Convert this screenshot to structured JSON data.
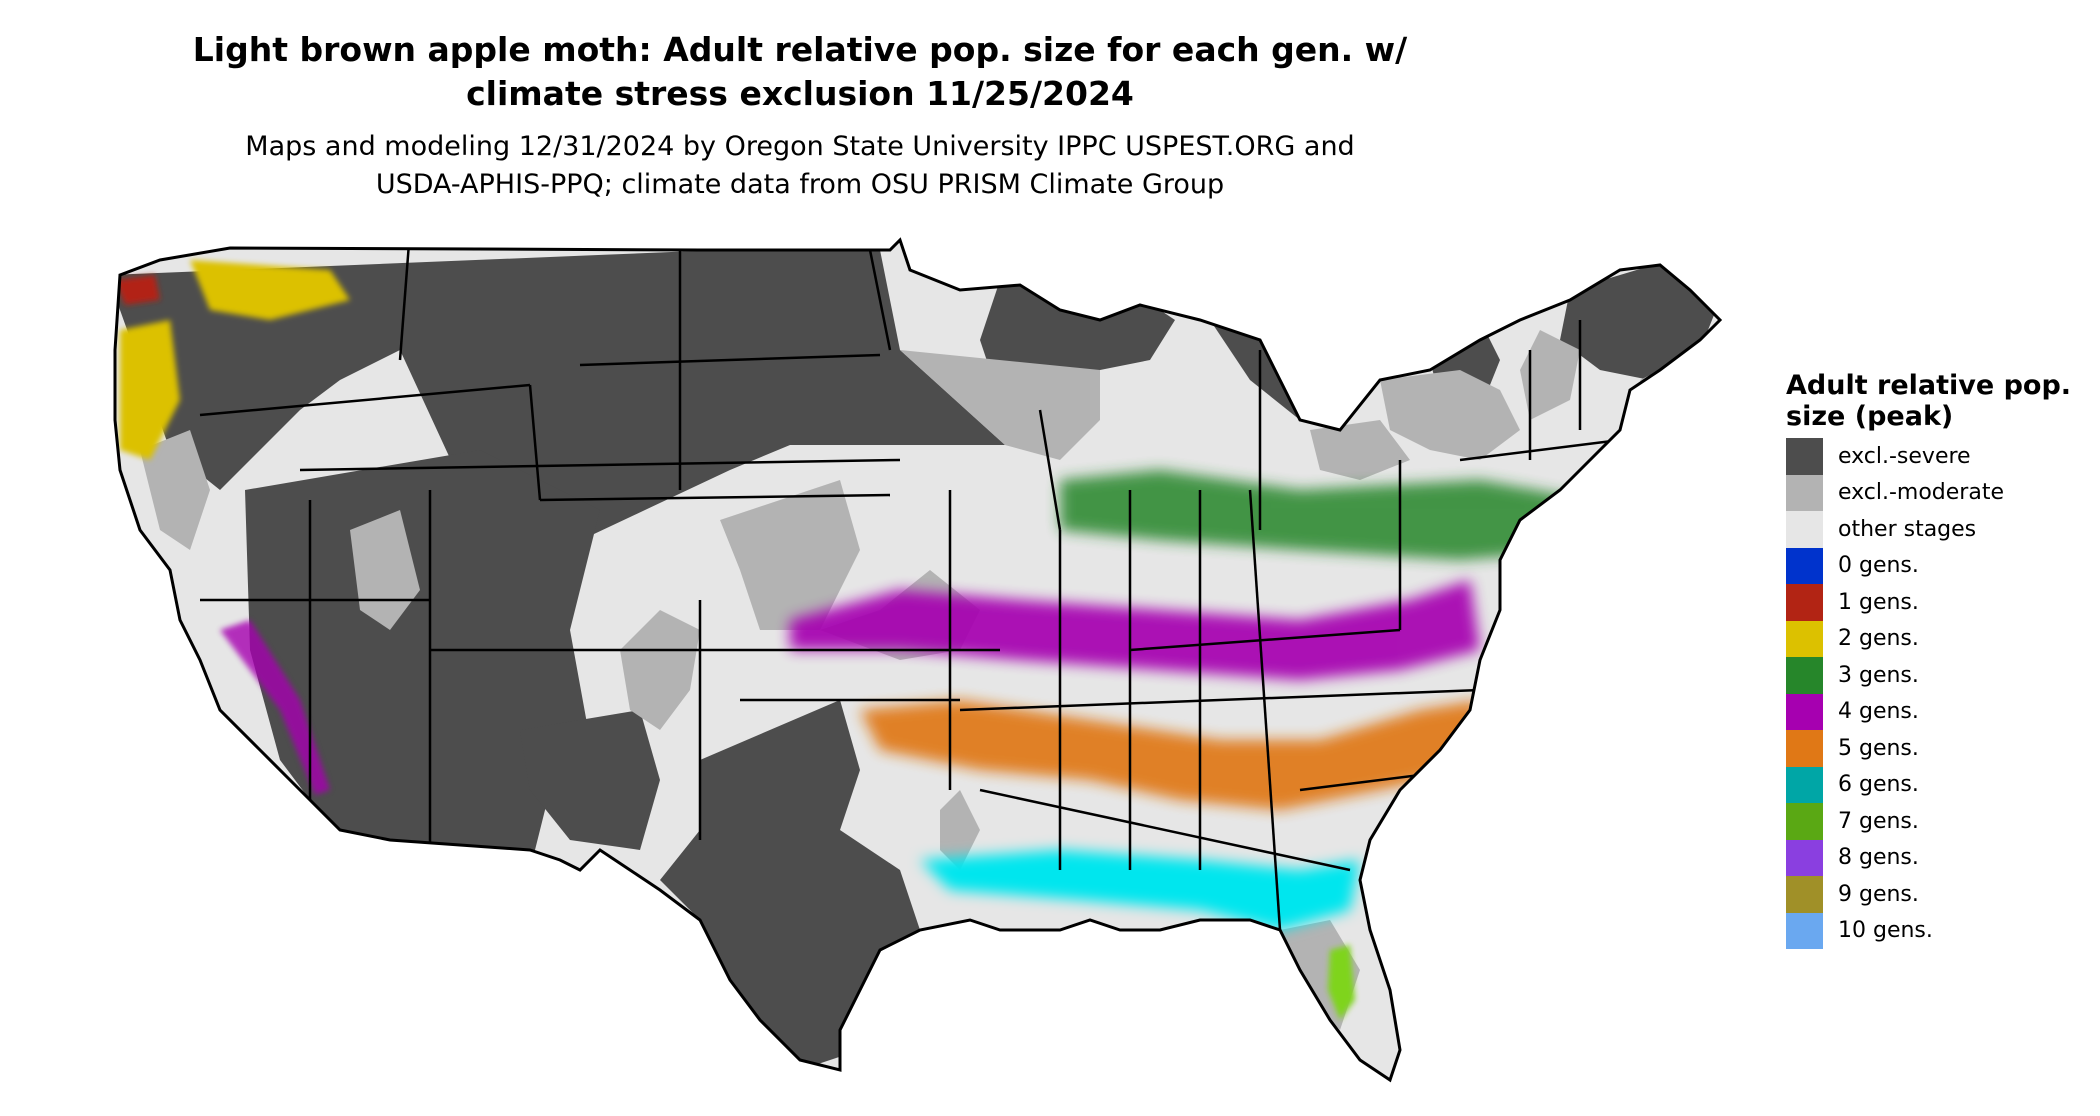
{
  "title_line1": "Light brown apple moth: Adult relative pop. size for each gen. w/",
  "title_line2": "climate stress exclusion 11/25/2024",
  "subtitle_line1": "Maps and modeling 12/31/2024 by Oregon State University IPPC USPEST.ORG and",
  "subtitle_line2": "USDA-APHIS-PPQ; climate data from OSU PRISM Climate Group",
  "map": {
    "region": "contiguous-us",
    "borders": "state-lines"
  },
  "legend": {
    "title": "Adult relative pop. size (peak)",
    "items": [
      {
        "label": "excl.-severe",
        "color": "#4d4d4d"
      },
      {
        "label": "excl.-moderate",
        "color": "#b3b3b3"
      },
      {
        "label": "other stages",
        "color": "#e6e6e6"
      },
      {
        "label": "0 gens.",
        "color": "#0033cc"
      },
      {
        "label": "1 gens.",
        "color": "#b22414"
      },
      {
        "label": "2 gens.",
        "color": "#dcc100"
      },
      {
        "label": "3 gens.",
        "color": "#26862a"
      },
      {
        "label": "4 gens.",
        "color": "#a600b0"
      },
      {
        "label": "5 gens.",
        "color": "#e07816"
      },
      {
        "label": "6 gens.",
        "color": "#00a6a6"
      },
      {
        "label": "7 gens.",
        "color": "#5aa814"
      },
      {
        "label": "8 gens.",
        "color": "#8a3fe0"
      },
      {
        "label": "9 gens.",
        "color": "#a09028"
      },
      {
        "label": "10 gens.",
        "color": "#6aa8f0"
      }
    ]
  }
}
